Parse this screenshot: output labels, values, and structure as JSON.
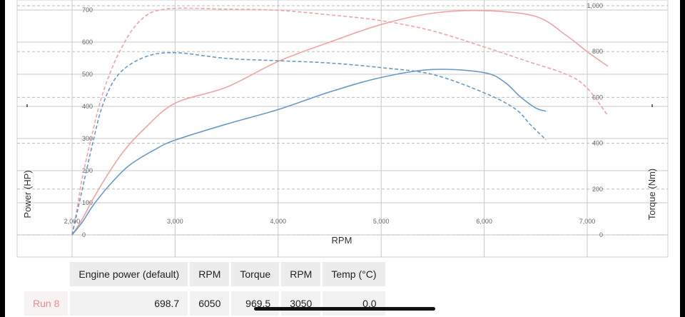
{
  "chart_data": {
    "type": "line",
    "xlabel": "RPM",
    "ylabel_left": "Power (HP)",
    "ylabel_right": "Torque (Nm)",
    "x_ticks": [
      "2,000",
      "3,000",
      "4,000",
      "5,000",
      "6,000",
      "7,000"
    ],
    "y_left_ticks": [
      "0",
      "100",
      "200",
      "300",
      "400",
      "500",
      "600",
      "700"
    ],
    "y_right_ticks": [
      "0",
      "200",
      "400",
      "600",
      "800",
      "1,000"
    ],
    "xlim": [
      1300,
      8050
    ],
    "ylim_left": [
      0,
      715
    ],
    "ylim_right": [
      0,
      1000
    ],
    "series": [
      {
        "color": "#f2a3a3",
        "style": "solid",
        "axis": "left",
        "points": [
          [
            2000,
            0
          ],
          [
            2100,
            50
          ],
          [
            2200,
            110
          ],
          [
            2350,
            190
          ],
          [
            2500,
            260
          ],
          [
            2700,
            330
          ],
          [
            3000,
            410
          ],
          [
            3500,
            460
          ],
          [
            4000,
            540
          ],
          [
            4500,
            600
          ],
          [
            5000,
            655
          ],
          [
            5500,
            690
          ],
          [
            6000,
            698
          ],
          [
            6500,
            680
          ],
          [
            6800,
            620
          ],
          [
            7000,
            570
          ],
          [
            7200,
            525
          ]
        ]
      },
      {
        "color": "#f2a3a3",
        "style": "dashed",
        "axis": "right",
        "points": [
          [
            2000,
            0
          ],
          [
            2050,
            120
          ],
          [
            2100,
            250
          ],
          [
            2200,
            450
          ],
          [
            2300,
            620
          ],
          [
            2450,
            790
          ],
          [
            2650,
            930
          ],
          [
            2900,
            985
          ],
          [
            3500,
            985
          ],
          [
            4000,
            980
          ],
          [
            4500,
            960
          ],
          [
            5000,
            935
          ],
          [
            5500,
            890
          ],
          [
            6000,
            820
          ],
          [
            6400,
            760
          ],
          [
            6800,
            700
          ],
          [
            7000,
            640
          ],
          [
            7200,
            520
          ]
        ]
      },
      {
        "color": "#6a9ac8",
        "style": "solid",
        "axis": "left",
        "points": [
          [
            2000,
            0
          ],
          [
            2100,
            40
          ],
          [
            2200,
            90
          ],
          [
            2350,
            150
          ],
          [
            2550,
            215
          ],
          [
            2800,
            265
          ],
          [
            3000,
            295
          ],
          [
            3500,
            345
          ],
          [
            4000,
            390
          ],
          [
            4500,
            445
          ],
          [
            5000,
            490
          ],
          [
            5500,
            515
          ],
          [
            6000,
            505
          ],
          [
            6200,
            475
          ],
          [
            6350,
            430
          ],
          [
            6500,
            395
          ],
          [
            6600,
            385
          ]
        ]
      },
      {
        "color": "#6a9ac8",
        "style": "dashed",
        "axis": "right",
        "points": [
          [
            2000,
            0
          ],
          [
            2050,
            100
          ],
          [
            2100,
            200
          ],
          [
            2200,
            400
          ],
          [
            2300,
            570
          ],
          [
            2450,
            700
          ],
          [
            2700,
            775
          ],
          [
            3000,
            795
          ],
          [
            3500,
            770
          ],
          [
            4000,
            760
          ],
          [
            4500,
            750
          ],
          [
            5000,
            730
          ],
          [
            5500,
            700
          ],
          [
            6000,
            620
          ],
          [
            6300,
            550
          ],
          [
            6450,
            480
          ],
          [
            6600,
            415
          ]
        ]
      }
    ]
  },
  "table": {
    "headers": [
      "Engine power (default)",
      "RPM",
      "Torque",
      "RPM",
      "Temp (°C)"
    ],
    "rows": [
      {
        "label": "Run 8",
        "cells": [
          "698.7",
          "6050",
          "969.5",
          "3050",
          "0.0"
        ]
      }
    ]
  }
}
